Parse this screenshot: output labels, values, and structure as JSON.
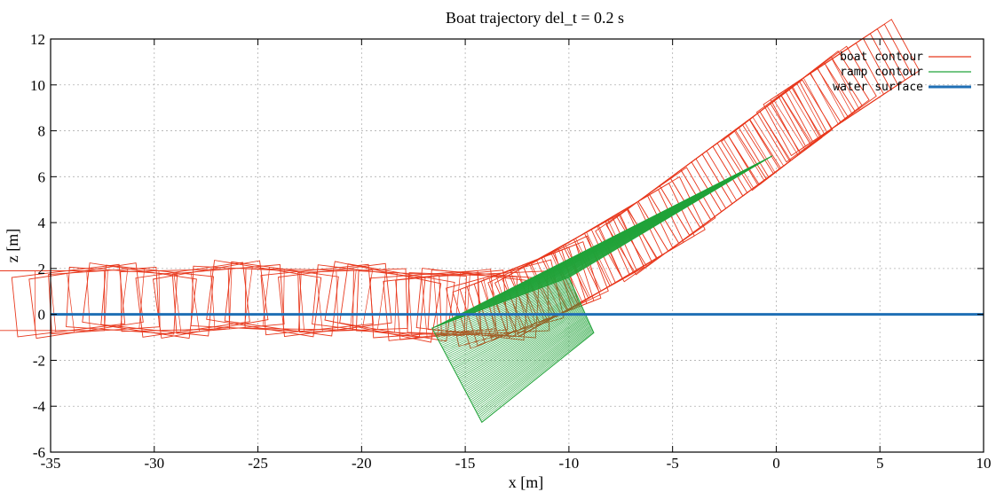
{
  "chart_data": {
    "type": "line",
    "title": "Boat trajectory del_t = 0.2 s",
    "xlabel": "x [m]",
    "ylabel": "z [m]",
    "xlim": [
      -35,
      10
    ],
    "ylim": [
      -6,
      12
    ],
    "xticks": [
      -35,
      -30,
      -25,
      -20,
      -15,
      -10,
      -5,
      0,
      5,
      10
    ],
    "yticks": [
      -6,
      -4,
      -2,
      0,
      2,
      4,
      6,
      8,
      10,
      12
    ],
    "grid": true,
    "legend_position": "top-right",
    "series": [
      {
        "name": "boat contour",
        "color": "#e8391e",
        "description_points": {
          "x": [
            -35,
            -30,
            -25,
            -20,
            -16,
            -13,
            -11,
            -9,
            -6,
            -3,
            0,
            2,
            4
          ],
          "z": [
            0.6,
            0.6,
            0.7,
            0.6,
            0.4,
            0.5,
            1.2,
            2.2,
            3.8,
            5.8,
            7.8,
            9.2,
            10.4
          ]
        }
      },
      {
        "name": "ramp contour",
        "color": "#22a33a",
        "description_points": {
          "x": [
            -16.6,
            -14.2,
            -8.8,
            -10,
            -6,
            -3,
            -0.2
          ],
          "z": [
            -0.6,
            -4.7,
            -0.8,
            1.6,
            3.6,
            5.3,
            6.9
          ]
        }
      },
      {
        "name": "water surface",
        "color": "#1f6fb5",
        "x": [
          -35,
          10
        ],
        "z": [
          0,
          0
        ]
      }
    ],
    "legend": [
      {
        "label": "boat contour",
        "color": "#e8391e"
      },
      {
        "label": "ramp contour",
        "color": "#22a33a"
      },
      {
        "label": "water surface",
        "color": "#1f6fb5"
      }
    ]
  }
}
